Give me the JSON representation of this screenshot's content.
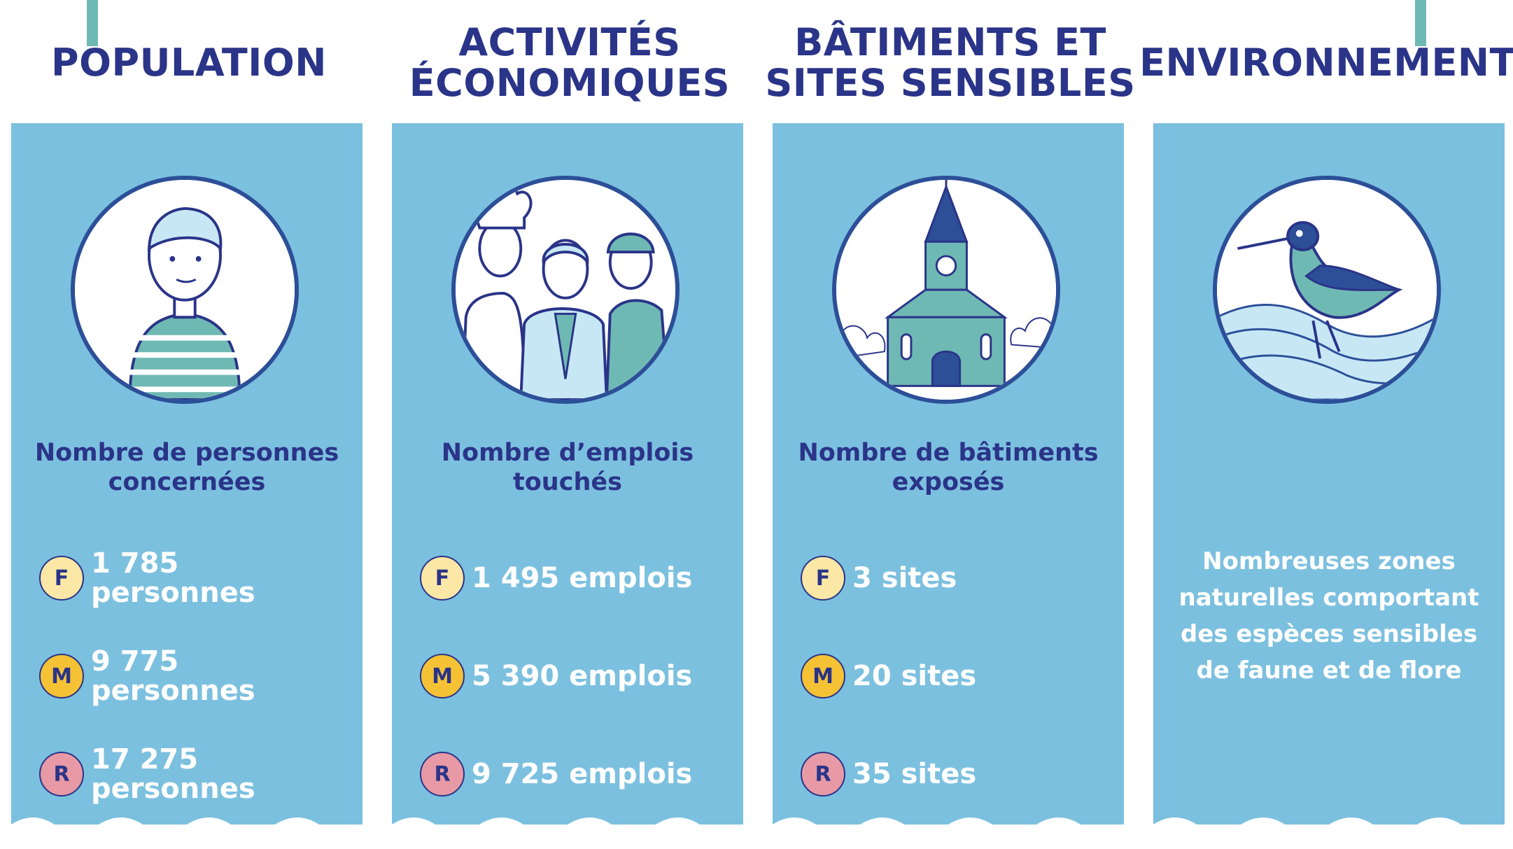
{
  "colors": {
    "panel": "#7cc0df",
    "title": "#2a3488",
    "accent": "#6fb9b4",
    "badge_F": "#fbe7a6",
    "badge_M": "#f5c235",
    "badge_R": "#e79aa6"
  },
  "columns": [
    {
      "title_lines": [
        "POPULATION"
      ],
      "icon": "person-icon",
      "subtitle_lines": [
        "Nombre de personnes",
        "concernées"
      ],
      "rows": [
        {
          "badge": "F",
          "lines": [
            "1 785",
            "personnes"
          ]
        },
        {
          "badge": "M",
          "lines": [
            "9 775",
            "personnes"
          ]
        },
        {
          "badge": "R",
          "lines": [
            "17 275",
            "personnes"
          ]
        }
      ]
    },
    {
      "title_lines": [
        "ACTIVITÉS",
        "ÉCONOMIQUES"
      ],
      "icon": "workers-icon",
      "subtitle_lines": [
        "Nombre d’emplois",
        "touchés"
      ],
      "rows": [
        {
          "badge": "F",
          "lines": [
            "1 495 emplois"
          ]
        },
        {
          "badge": "M",
          "lines": [
            "5 390 emplois"
          ]
        },
        {
          "badge": "R",
          "lines": [
            "9 725 emplois"
          ]
        }
      ]
    },
    {
      "title_lines": [
        "BÂTIMENTS ET",
        "SITES SENSIBLES"
      ],
      "icon": "church-icon",
      "subtitle_lines": [
        "Nombre de bâtiments",
        "exposés"
      ],
      "rows": [
        {
          "badge": "F",
          "lines": [
            "3 sites"
          ]
        },
        {
          "badge": "M",
          "lines": [
            "20 sites"
          ]
        },
        {
          "badge": "R",
          "lines": [
            "35 sites"
          ]
        }
      ]
    },
    {
      "title_lines": [
        "ENVIRONNEMENT"
      ],
      "icon": "bird-icon",
      "text_lines": [
        "Nombreuses zones",
        "naturelles comportant",
        "des espèces sensibles",
        "de faune et de flore"
      ]
    }
  ]
}
